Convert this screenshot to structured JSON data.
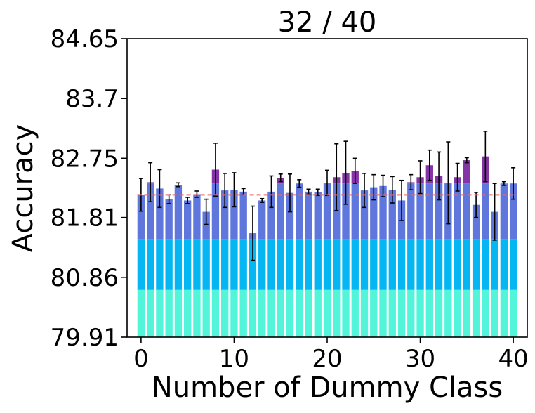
{
  "chart_data": {
    "type": "bar",
    "title": "32 / 40",
    "xlabel": "Number of Dummy Class",
    "ylabel": "Accuracy",
    "xlim": [
      -1.5,
      41.5
    ],
    "ylim": [
      79.91,
      84.65
    ],
    "yticks": [
      "79.91",
      "80.86",
      "81.81",
      "82.75",
      "83.7",
      "84.65"
    ],
    "xticks": [
      0,
      10,
      20,
      30,
      40
    ],
    "baseline": 82.17,
    "x": [
      0,
      1,
      2,
      3,
      4,
      5,
      6,
      7,
      8,
      9,
      10,
      11,
      12,
      13,
      14,
      15,
      16,
      17,
      18,
      19,
      20,
      21,
      22,
      23,
      24,
      25,
      26,
      27,
      28,
      29,
      30,
      31,
      32,
      33,
      34,
      35,
      36,
      37,
      38,
      39,
      40
    ],
    "values": [
      82.17,
      82.37,
      82.27,
      82.1,
      82.33,
      82.08,
      82.18,
      81.9,
      82.57,
      82.24,
      82.25,
      82.22,
      81.56,
      82.08,
      82.22,
      82.44,
      82.2,
      82.35,
      82.22,
      82.21,
      82.36,
      82.45,
      82.52,
      82.55,
      82.24,
      82.29,
      82.31,
      82.25,
      82.08,
      82.37,
      82.45,
      82.64,
      82.47,
      82.36,
      82.45,
      82.72,
      82.01,
      82.78,
      81.9,
      82.35,
      82.35
    ],
    "errors": [
      0.26,
      0.31,
      0.3,
      0.07,
      0.03,
      0.05,
      0.05,
      0.2,
      0.42,
      0.27,
      0.27,
      0.05,
      0.43,
      0.03,
      0.25,
      0.06,
      0.3,
      0.06,
      0.04,
      0.05,
      0.2,
      0.53,
      0.5,
      0.2,
      0.27,
      0.2,
      0.17,
      0.21,
      0.32,
      0.12,
      0.26,
      0.24,
      0.38,
      0.65,
      0.22,
      0.04,
      0.2,
      0.4,
      0.45,
      0.03,
      0.25
    ],
    "layers": [
      {
        "name": "aquamarine",
        "color": "#52f5d9",
        "top": 80.66
      },
      {
        "name": "deep-sky-blue",
        "color": "#04b6f2",
        "top": 81.47
      },
      {
        "name": "royal-blue",
        "color": "#5f77dc",
        "top": 82.35
      },
      {
        "name": "purple",
        "color": "#8534a6",
        "top": 84.65
      }
    ],
    "baseline_color": "#e66a6a",
    "error_color": "#000000",
    "grid": false
  }
}
